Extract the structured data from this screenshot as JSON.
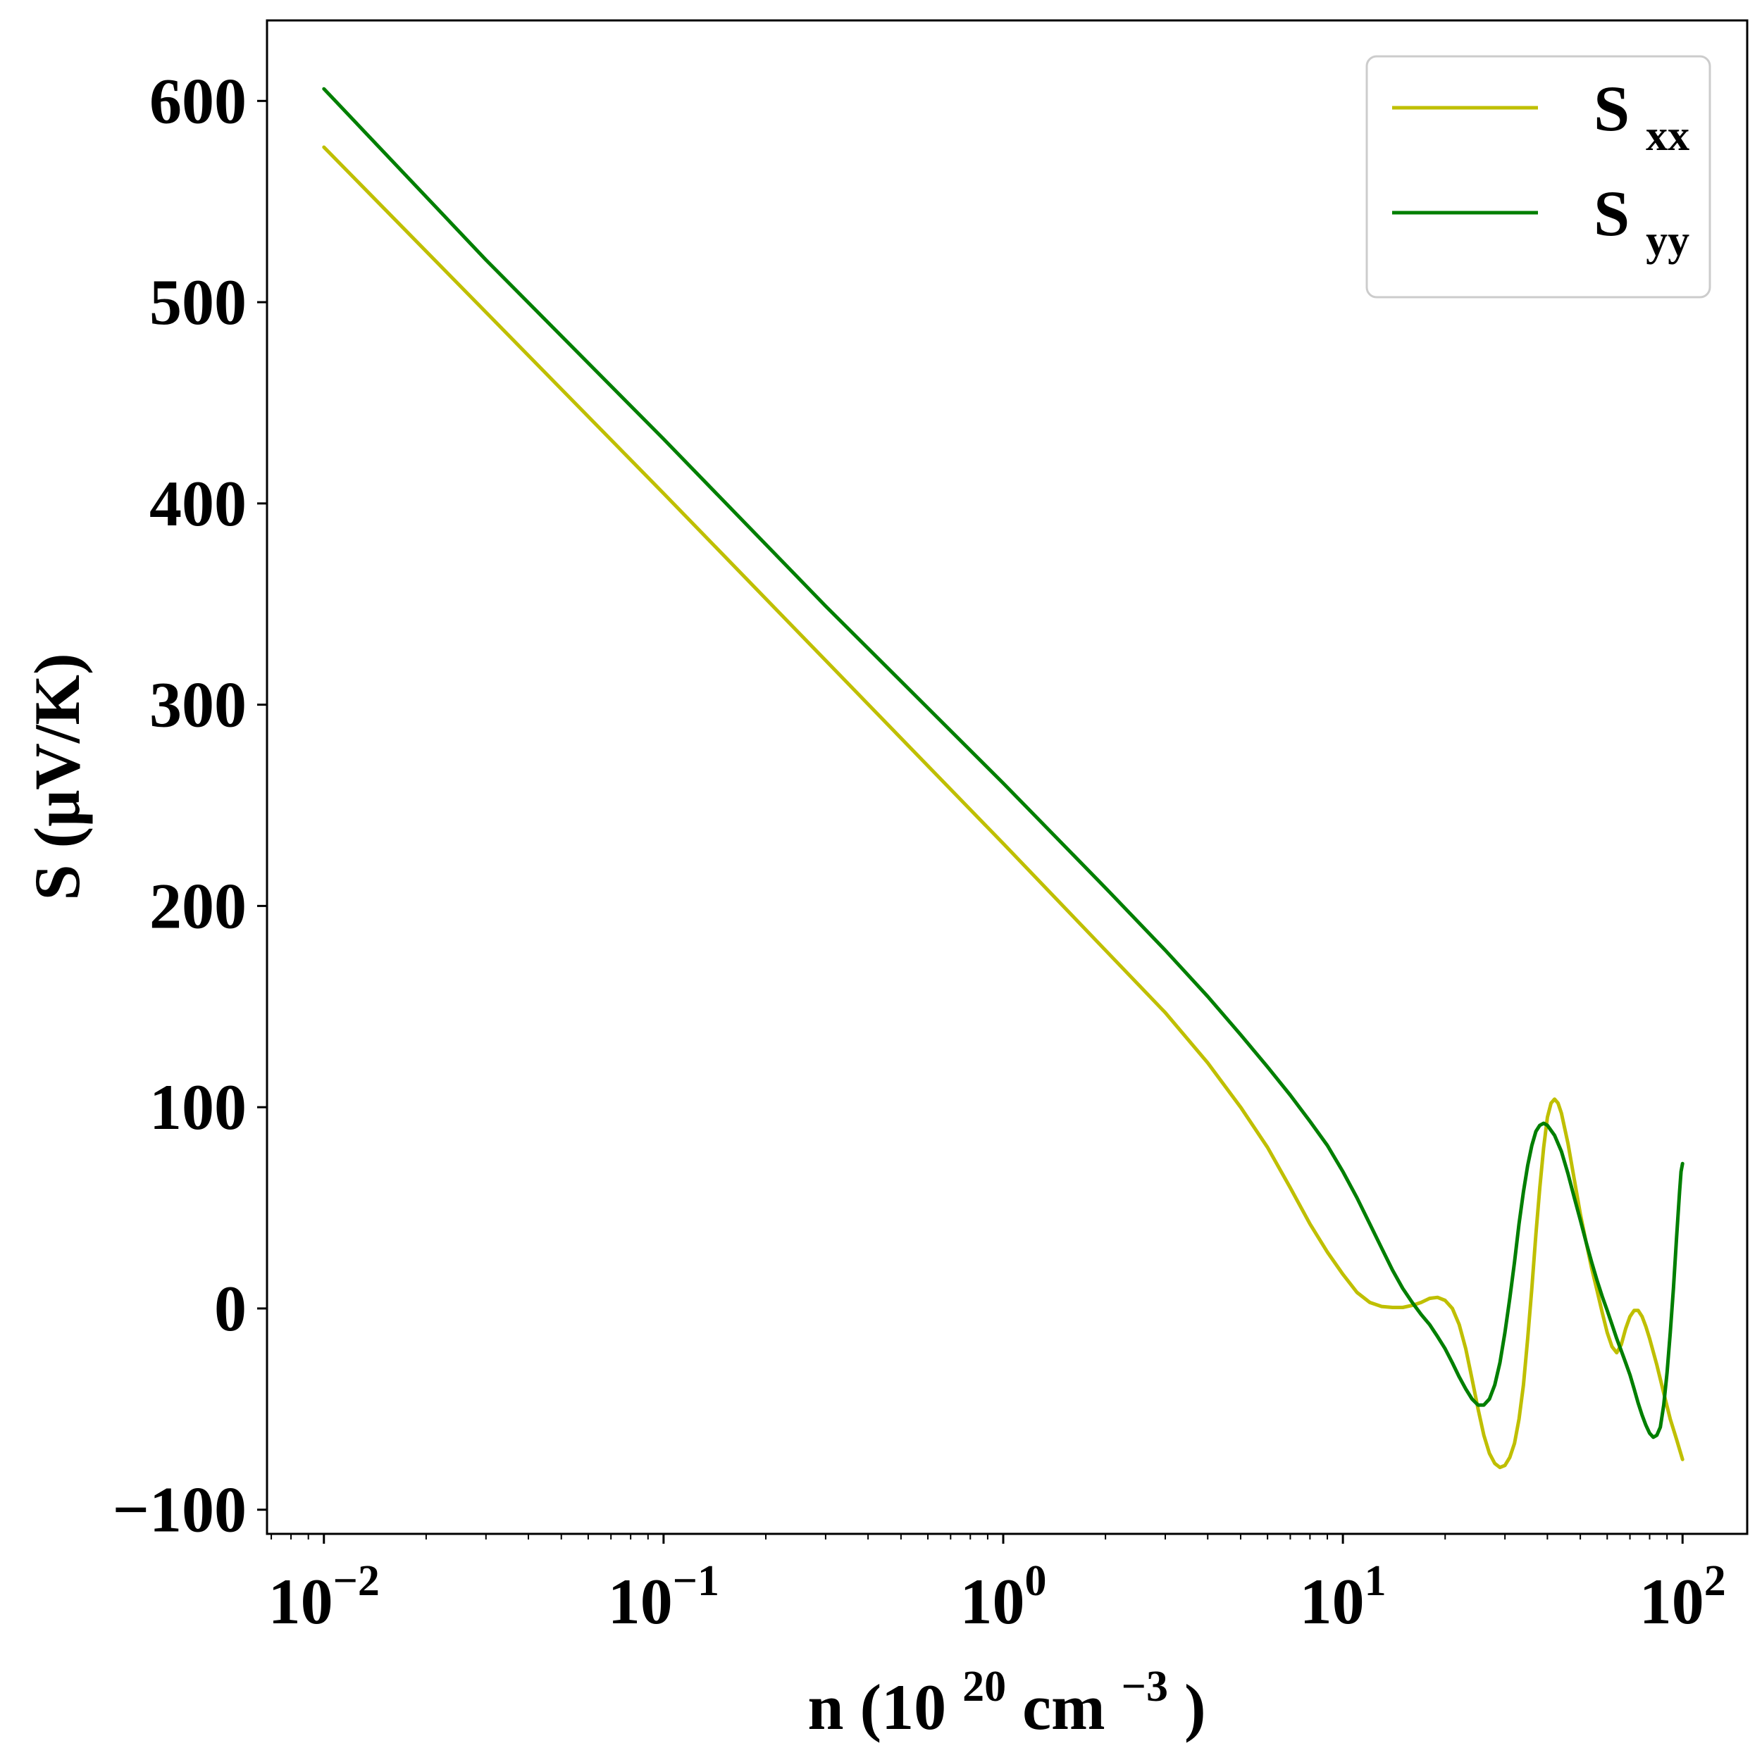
{
  "chart_data": {
    "type": "line",
    "title": "",
    "xlabel": {
      "prefix": "n (10",
      "exp1": "20",
      "mid": " cm",
      "exp2": "−3",
      "suffix": ")"
    },
    "ylabel": "S (μV/K)",
    "xscale": "log",
    "xlim": [
      0.0068,
      155
    ],
    "ylim": [
      -112,
      640
    ],
    "x_ticks": [
      {
        "base": "10",
        "exp": "−2"
      },
      {
        "base": "10",
        "exp": "−1"
      },
      {
        "base": "10",
        "exp": "0"
      },
      {
        "base": "10",
        "exp": "1"
      },
      {
        "base": "10",
        "exp": "2"
      }
    ],
    "x_tick_values": [
      0.01,
      0.1,
      1,
      10,
      100
    ],
    "y_ticks": [
      "−100",
      "0",
      "100",
      "200",
      "300",
      "400",
      "500",
      "600"
    ],
    "y_tick_values": [
      -100,
      0,
      100,
      200,
      300,
      400,
      500,
      600
    ],
    "grid": false,
    "legend_position": "top-right",
    "series": [
      {
        "name": {
          "base": "S",
          "sub": "xx"
        },
        "color": "#bfbf00",
        "points": [
          [
            0.01,
            577
          ],
          [
            0.03,
            495
          ],
          [
            0.1,
            405
          ],
          [
            0.3,
            322
          ],
          [
            1,
            231
          ],
          [
            2,
            178
          ],
          [
            3,
            147
          ],
          [
            4,
            122
          ],
          [
            5,
            100
          ],
          [
            6,
            80
          ],
          [
            7,
            60
          ],
          [
            8,
            42
          ],
          [
            9,
            28
          ],
          [
            10,
            17
          ],
          [
            11,
            8
          ],
          [
            12,
            3
          ],
          [
            13,
            1
          ],
          [
            14,
            0.5
          ],
          [
            15,
            0.5
          ],
          [
            16,
            1.5
          ],
          [
            17,
            3
          ],
          [
            18,
            5
          ],
          [
            19,
            5.5
          ],
          [
            20,
            4
          ],
          [
            21,
            0
          ],
          [
            22,
            -8
          ],
          [
            23,
            -20
          ],
          [
            24,
            -35
          ],
          [
            25,
            -50
          ],
          [
            26,
            -63
          ],
          [
            27,
            -72
          ],
          [
            28,
            -77
          ],
          [
            29,
            -79
          ],
          [
            30,
            -78
          ],
          [
            31,
            -74
          ],
          [
            32,
            -67
          ],
          [
            33,
            -55
          ],
          [
            34,
            -38
          ],
          [
            35,
            -15
          ],
          [
            36,
            10
          ],
          [
            37,
            37
          ],
          [
            38,
            60
          ],
          [
            39,
            80
          ],
          [
            40,
            95
          ],
          [
            41,
            102
          ],
          [
            42,
            104
          ],
          [
            43,
            102
          ],
          [
            44,
            97
          ],
          [
            46,
            82
          ],
          [
            48,
            64
          ],
          [
            50,
            47
          ],
          [
            52,
            33
          ],
          [
            54,
            20
          ],
          [
            56,
            9
          ],
          [
            58,
            -2
          ],
          [
            60,
            -12
          ],
          [
            62,
            -19
          ],
          [
            64,
            -22
          ],
          [
            66,
            -18
          ],
          [
            68,
            -10
          ],
          [
            70,
            -4
          ],
          [
            72,
            -1
          ],
          [
            74,
            -1
          ],
          [
            76,
            -4
          ],
          [
            78,
            -9
          ],
          [
            80,
            -15
          ],
          [
            84,
            -28
          ],
          [
            88,
            -42
          ],
          [
            92,
            -55
          ],
          [
            96,
            -65
          ],
          [
            100,
            -75
          ]
        ]
      },
      {
        "name": {
          "base": "S",
          "sub": "yy"
        },
        "color": "#007f00",
        "points": [
          [
            0.01,
            606
          ],
          [
            0.03,
            521
          ],
          [
            0.1,
            432
          ],
          [
            0.3,
            349
          ],
          [
            1,
            261
          ],
          [
            2,
            209
          ],
          [
            3,
            178
          ],
          [
            4,
            155
          ],
          [
            5,
            136
          ],
          [
            6,
            120
          ],
          [
            7,
            106
          ],
          [
            8,
            93
          ],
          [
            9,
            81
          ],
          [
            10,
            68
          ],
          [
            11,
            55
          ],
          [
            12,
            42
          ],
          [
            13,
            30
          ],
          [
            14,
            19
          ],
          [
            15,
            10
          ],
          [
            16,
            3
          ],
          [
            17,
            -3
          ],
          [
            18,
            -8
          ],
          [
            19,
            -14
          ],
          [
            20,
            -20
          ],
          [
            21,
            -27
          ],
          [
            22,
            -34
          ],
          [
            23,
            -40
          ],
          [
            24,
            -45
          ],
          [
            25,
            -48
          ],
          [
            26,
            -48
          ],
          [
            27,
            -45
          ],
          [
            28,
            -38
          ],
          [
            29,
            -27
          ],
          [
            30,
            -12
          ],
          [
            31,
            5
          ],
          [
            32,
            23
          ],
          [
            33,
            42
          ],
          [
            34,
            58
          ],
          [
            35,
            71
          ],
          [
            36,
            81
          ],
          [
            37,
            88
          ],
          [
            38,
            91
          ],
          [
            39,
            92
          ],
          [
            40,
            91
          ],
          [
            42,
            86
          ],
          [
            44,
            78
          ],
          [
            46,
            67
          ],
          [
            48,
            55
          ],
          [
            50,
            44
          ],
          [
            52,
            33
          ],
          [
            54,
            23
          ],
          [
            56,
            14
          ],
          [
            58,
            6
          ],
          [
            60,
            -1
          ],
          [
            62,
            -8
          ],
          [
            64,
            -15
          ],
          [
            66,
            -21
          ],
          [
            68,
            -27
          ],
          [
            70,
            -33
          ],
          [
            72,
            -40
          ],
          [
            74,
            -47
          ],
          [
            76,
            -53
          ],
          [
            78,
            -58
          ],
          [
            80,
            -62
          ],
          [
            82,
            -64
          ],
          [
            84,
            -63
          ],
          [
            86,
            -59
          ],
          [
            88,
            -48
          ],
          [
            90,
            -32
          ],
          [
            92,
            -12
          ],
          [
            94,
            10
          ],
          [
            96,
            35
          ],
          [
            98,
            58
          ],
          [
            99,
            68
          ],
          [
            100,
            72
          ]
        ]
      }
    ]
  }
}
